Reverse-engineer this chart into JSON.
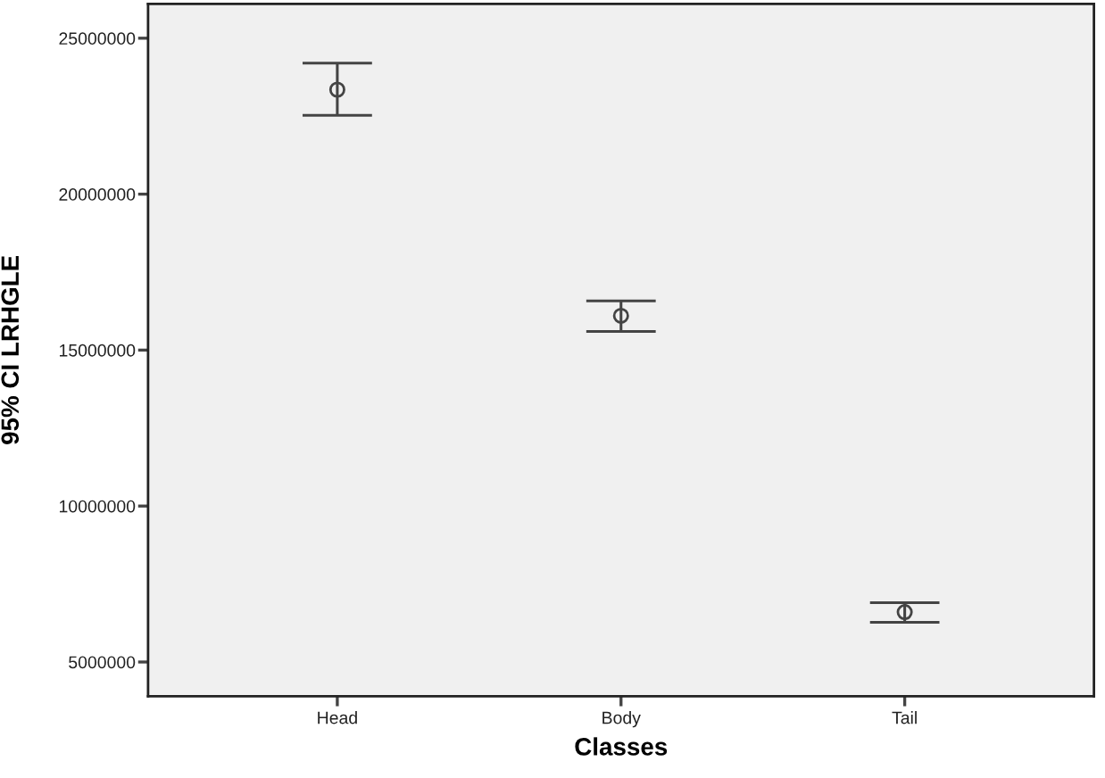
{
  "chart_data": {
    "type": "scatter",
    "xlabel": "Classes",
    "ylabel": "95% CI LRHGLE",
    "categories": [
      "Head",
      "Body",
      "Tail"
    ],
    "values": [
      23350000,
      16100000,
      6600000
    ],
    "errors": [
      [
        22530000,
        24200000
      ],
      [
        15600000,
        16580000
      ],
      [
        6270000,
        6900000
      ]
    ],
    "color": "#444444",
    "marker": "circle",
    "ylim": [
      3900000,
      26100000
    ],
    "yticks": [
      5000000,
      10000000,
      15000000,
      20000000,
      25000000
    ]
  }
}
